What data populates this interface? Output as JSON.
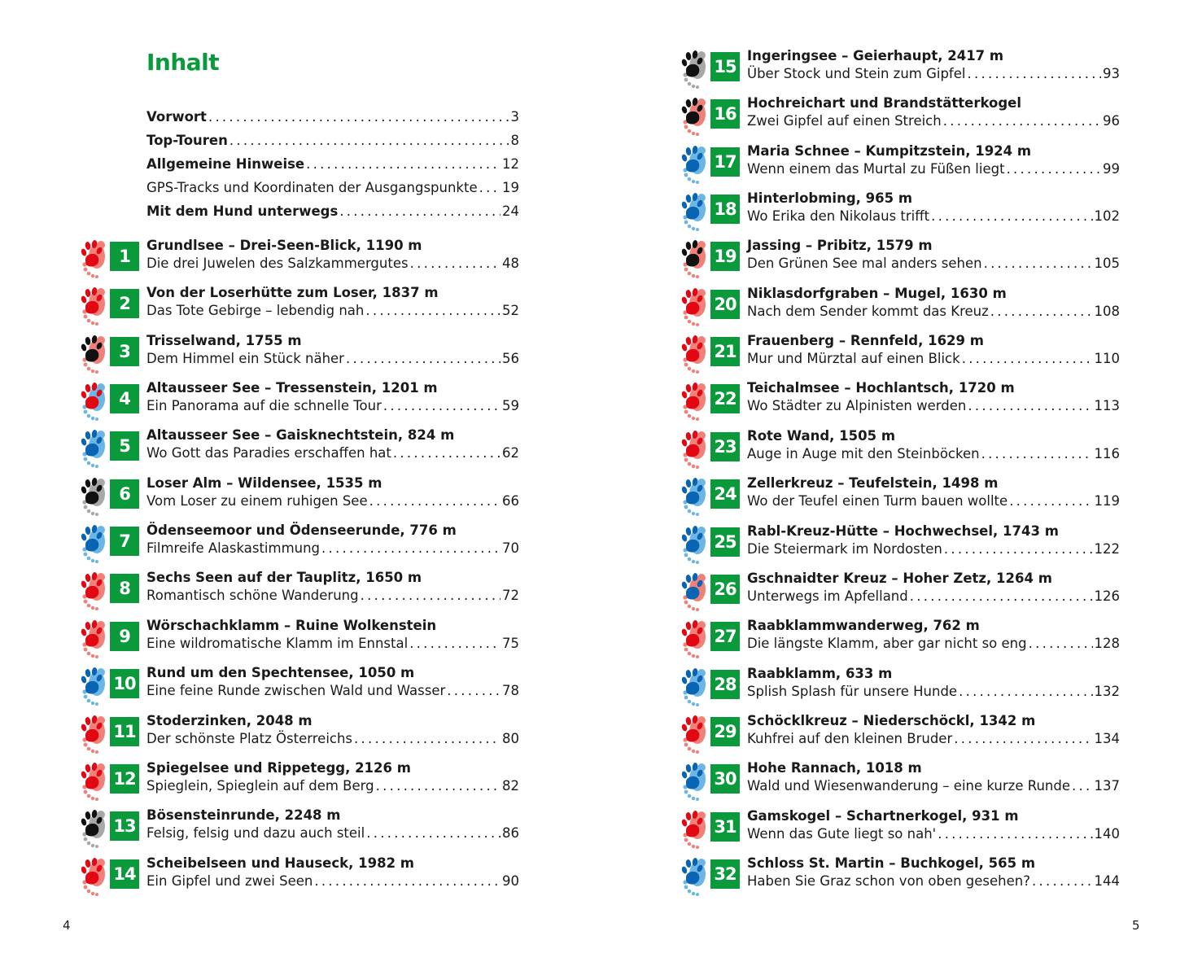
{
  "heading": "Inhalt",
  "colors": {
    "accent": "#0a9a3c",
    "red": "#e30613",
    "red_light": "#f08078",
    "blue": "#0a64b4",
    "blue_light": "#6cb6e6",
    "black": "#111111",
    "gray": "#a8a8a8"
  },
  "intro": [
    {
      "label": "Vorwort",
      "page": "3",
      "bold": true
    },
    {
      "label": "Top-Touren",
      "page": "8",
      "bold": true
    },
    {
      "label": "Allgemeine Hinweise",
      "page": "12",
      "bold": true
    },
    {
      "label": "GPS-Tracks und Koordinaten der Ausgangspunkte",
      "page": "19",
      "bold": false
    },
    {
      "label": "Mit dem Hund unterwegs",
      "page": "24",
      "bold": true
    }
  ],
  "tours": [
    {
      "num": "1",
      "title": "Grundlsee – Drei-Seen-Blick, 1190 m",
      "subtitle": "Die drei Juwelen des Salzkammergutes",
      "page": "48",
      "paw": "red",
      "foot": "red_light"
    },
    {
      "num": "2",
      "title": "Von der Loserhütte zum Loser, 1837 m",
      "subtitle": "Das Tote Gebirge – lebendig nah",
      "page": "52",
      "paw": "red",
      "foot": "red_light"
    },
    {
      "num": "3",
      "title": "Trisselwand, 1755 m",
      "subtitle": "Dem Himmel ein Stück näher",
      "page": "56",
      "paw": "black",
      "foot": "red_light"
    },
    {
      "num": "4",
      "title": "Altausseer See – Tressenstein, 1201 m",
      "subtitle": "Ein Panorama auf die schnelle Tour",
      "page": "59",
      "paw": "red",
      "foot": "blue_light"
    },
    {
      "num": "5",
      "title": "Altausseer See – Gaisknechtstein, 824 m",
      "subtitle": "Wo Gott das Paradies erschaffen hat",
      "page": "62",
      "paw": "blue",
      "foot": "blue_light"
    },
    {
      "num": "6",
      "title": "Loser Alm – Wildensee, 1535 m",
      "subtitle": "Vom Loser zu einem ruhigen See",
      "page": "66",
      "paw": "black",
      "foot": "gray"
    },
    {
      "num": "7",
      "title": "Ödenseemoor und Ödenseerunde, 776 m",
      "subtitle": "Filmreife Alaskastimmung",
      "page": "70",
      "paw": "blue",
      "foot": "blue_light"
    },
    {
      "num": "8",
      "title": "Sechs Seen auf der Tauplitz, 1650 m",
      "subtitle": "Romantisch schöne Wanderung",
      "page": "72",
      "paw": "red",
      "foot": "red_light"
    },
    {
      "num": "9",
      "title": "Wörschachklamm – Ruine Wolkenstein",
      "subtitle": "Eine wildromatische Klamm im Ennstal",
      "page": "75",
      "paw": "red",
      "foot": "red_light"
    },
    {
      "num": "10",
      "title": "Rund um den Spechtensee, 1050 m",
      "subtitle": "Eine feine Runde zwischen Wald und Wasser",
      "page": "78",
      "paw": "blue",
      "foot": "blue_light"
    },
    {
      "num": "11",
      "title": "Stoderzinken, 2048 m",
      "subtitle": "Der schönste Platz Österreichs",
      "page": "80",
      "paw": "red",
      "foot": "red_light"
    },
    {
      "num": "12",
      "title": "Spiegelsee und Rippetegg, 2126 m",
      "subtitle": "Spieglein, Spieglein auf dem Berg",
      "page": "82",
      "paw": "red",
      "foot": "red_light"
    },
    {
      "num": "13",
      "title": "Bösensteinrunde, 2248 m",
      "subtitle": "Felsig, felsig und dazu auch steil",
      "page": "86",
      "paw": "black",
      "foot": "gray"
    },
    {
      "num": "14",
      "title": "Scheibelseen und Hauseck, 1982 m",
      "subtitle": "Ein Gipfel und zwei Seen",
      "page": "90",
      "paw": "red",
      "foot": "red_light"
    },
    {
      "num": "15",
      "title": "Ingeringsee – Geierhaupt, 2417 m",
      "subtitle": "Über Stock und Stein zum Gipfel",
      "page": "93",
      "paw": "black",
      "foot": "gray"
    },
    {
      "num": "16",
      "title": "Hochreichart und Brandstätterkogel",
      "subtitle": "Zwei Gipfel auf einen Streich",
      "page": "96",
      "paw": "black",
      "foot": "red_light"
    },
    {
      "num": "17",
      "title": "Maria Schnee – Kumpitzstein, 1924 m",
      "subtitle": "Wenn einem das Murtal zu Füßen liegt",
      "page": "99",
      "paw": "blue",
      "foot": "blue_light"
    },
    {
      "num": "18",
      "title": "Hinterlobming, 965 m",
      "subtitle": "Wo Erika den Nikolaus trifft",
      "page": "102",
      "paw": "blue",
      "foot": "blue_light"
    },
    {
      "num": "19",
      "title": "Jassing – Pribitz, 1579 m",
      "subtitle": "Den Grünen See mal anders sehen",
      "page": "105",
      "paw": "black",
      "foot": "red_light"
    },
    {
      "num": "20",
      "title": "Niklasdorfgraben – Mugel, 1630 m",
      "subtitle": "Nach dem Sender kommt das Kreuz",
      "page": "108",
      "paw": "red",
      "foot": "red_light"
    },
    {
      "num": "21",
      "title": "Frauenberg – Rennfeld, 1629 m",
      "subtitle": "Mur und Mürztal auf einen Blick",
      "page": "110",
      "paw": "red",
      "foot": "red_light"
    },
    {
      "num": "22",
      "title": "Teichalmsee – Hochlantsch, 1720 m",
      "subtitle": "Wo Städter zu Alpinisten werden",
      "page": "113",
      "paw": "red",
      "foot": "red_light"
    },
    {
      "num": "23",
      "title": "Rote Wand, 1505 m",
      "subtitle": "Auge in Auge mit den Steinböcken",
      "page": "116",
      "paw": "red",
      "foot": "red_light"
    },
    {
      "num": "24",
      "title": "Zellerkreuz – Teufelstein, 1498 m",
      "subtitle": "Wo der Teufel einen Turm bauen wollte",
      "page": "119",
      "paw": "blue",
      "foot": "blue_light"
    },
    {
      "num": "25",
      "title": "Rabl-Kreuz-Hütte – Hochwechsel, 1743 m",
      "subtitle": "Die Steiermark im Nordosten",
      "page": "122",
      "paw": "blue",
      "foot": "blue_light"
    },
    {
      "num": "26",
      "title": "Gschnaidter Kreuz – Hoher Zetz, 1264 m",
      "subtitle": "Unterwegs im Apfelland",
      "page": "126",
      "paw": "blue",
      "foot": "red_light"
    },
    {
      "num": "27",
      "title": "Raabklammwanderweg, 762 m",
      "subtitle": "Die längste Klamm, aber gar nicht so eng",
      "page": "128",
      "paw": "red",
      "foot": "red_light"
    },
    {
      "num": "28",
      "title": "Raabklamm, 633 m",
      "subtitle": "Splish Splash für unsere Hunde",
      "page": "132",
      "paw": "blue",
      "foot": "blue_light"
    },
    {
      "num": "29",
      "title": "Schöcklkreuz – Niederschöckl, 1342 m",
      "subtitle": "Kuhfrei auf den kleinen Bruder",
      "page": "134",
      "paw": "red",
      "foot": "red_light"
    },
    {
      "num": "30",
      "title": "Hohe Rannach, 1018 m",
      "subtitle": "Wald und Wiesenwanderung – eine kurze Runde",
      "page": "137",
      "paw": "blue",
      "foot": "blue_light"
    },
    {
      "num": "31",
      "title": "Gamskogel – Schartnerkogel, 931 m",
      "subtitle": "Wenn das Gute liegt so nah'",
      "page": "140",
      "paw": "red",
      "foot": "red_light"
    },
    {
      "num": "32",
      "title": "Schloss St. Martin – Buchkogel, 565 m",
      "subtitle": "Haben Sie Graz schon von oben gesehen?",
      "page": "144",
      "paw": "blue",
      "foot": "blue_light"
    }
  ],
  "folio": {
    "left": "4",
    "right": "5"
  }
}
